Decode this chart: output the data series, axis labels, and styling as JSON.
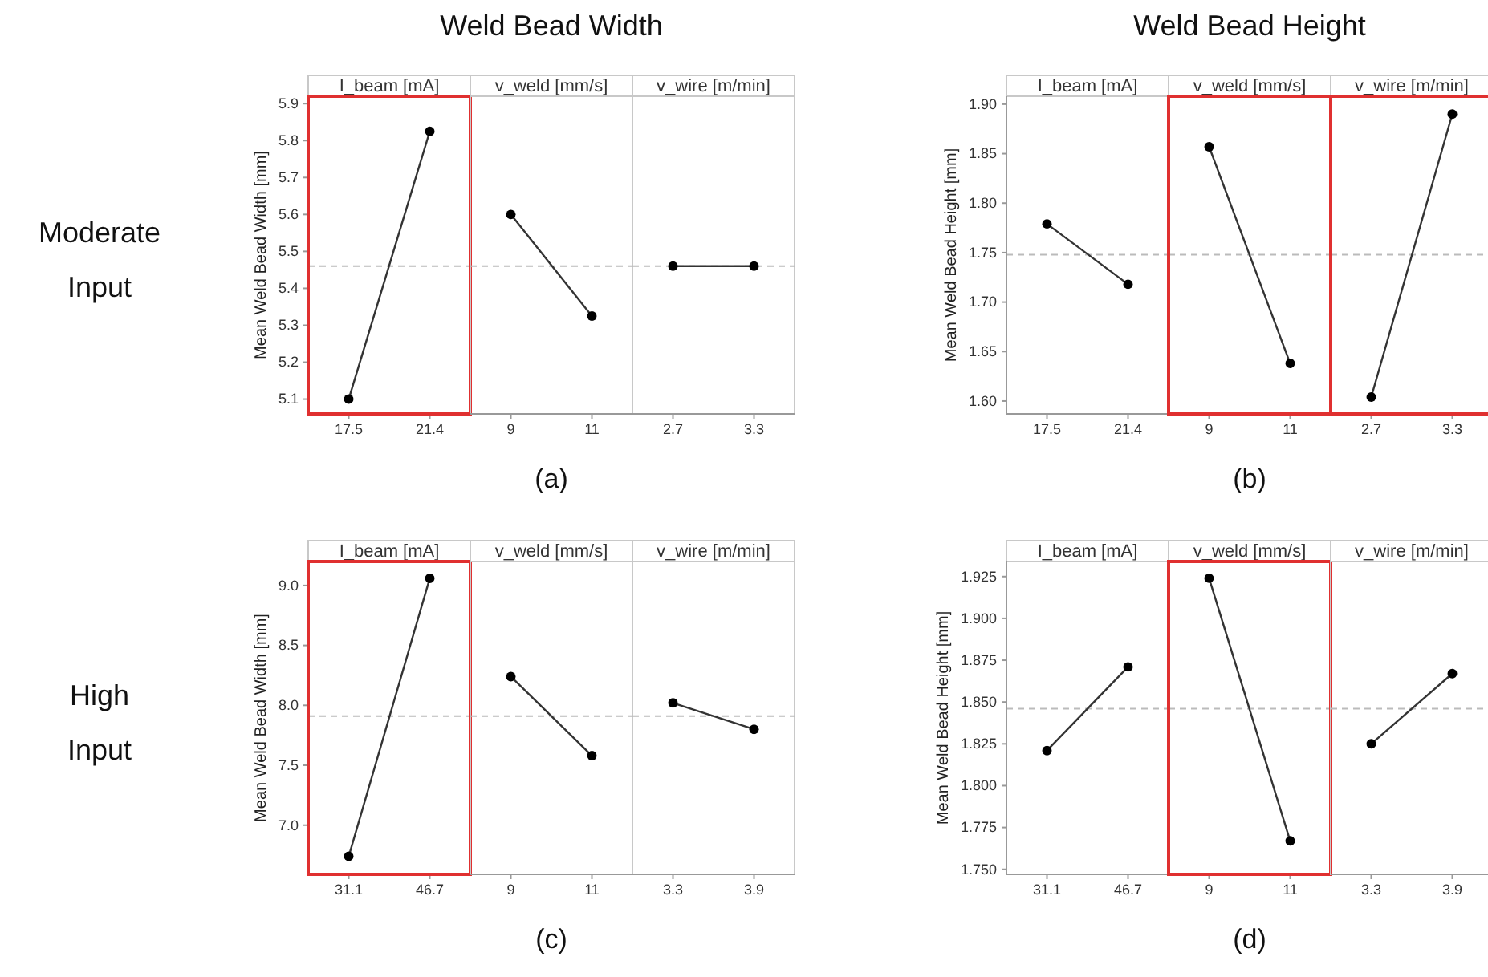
{
  "chart_data": [
    {
      "type": "line",
      "title": "I_beam [mA]",
      "ylabel": "Mean Weld Bead Width [mm]",
      "annotations": [
        "Moderate Input"
      ],
      "categories": [
        "17.5",
        "21.4"
      ],
      "series": [
        {
          "color": "#333333",
          "values": [
            5.1,
            5.825
          ]
        }
      ],
      "ylim": [
        5.06,
        5.92
      ],
      "yticks": [
        5.1,
        5.2,
        5.3,
        5.4,
        5.5,
        5.6,
        5.7,
        5.8,
        5.9
      ],
      "ref_lines": [
        {
          "axis": "y",
          "value": 5.46,
          "color": "#bbbbbb",
          "line_style": "dashed"
        }
      ],
      "marker": "circle"
    },
    {
      "type": "line",
      "title": "v_weld [mm/s]",
      "xlabel": "(a)",
      "annotations": [
        "Weld Bead Width"
      ],
      "categories": [
        "9",
        "11"
      ],
      "series": [
        {
          "color": "#333333",
          "values": [
            5.6,
            5.325
          ]
        }
      ],
      "ylim": [
        5.06,
        5.92
      ],
      "tick_labels": "x",
      "ref_lines": [
        {
          "axis": "y",
          "value": 5.46,
          "color": "#bbbbbb",
          "line_style": "dashed"
        }
      ],
      "marker": "circle"
    },
    {
      "type": "line",
      "title": "v_wire [m/min]",
      "categories": [
        "2.7",
        "3.3"
      ],
      "series": [
        {
          "color": "#333333",
          "values": [
            5.46,
            5.46
          ]
        }
      ],
      "ylim": [
        5.06,
        5.92
      ],
      "tick_labels": "x",
      "ref_lines": [
        {
          "axis": "y",
          "value": 5.46,
          "color": "#bbbbbb",
          "line_style": "dashed"
        }
      ],
      "marker": "circle"
    },
    {
      "type": "line",
      "title": "I_beam [mA]",
      "ylabel": "Mean Weld Bead Height [mm]",
      "categories": [
        "17.5",
        "21.4"
      ],
      "series": [
        {
          "color": "#333333",
          "values": [
            1.779,
            1.718
          ]
        }
      ],
      "ylim": [
        1.587,
        1.908
      ],
      "yticks": [
        {
          "value": 1.6,
          "label": "1.60"
        },
        {
          "value": 1.65,
          "label": "1.65"
        },
        {
          "value": 1.7,
          "label": "1.70"
        },
        {
          "value": 1.75,
          "label": "1.75"
        },
        {
          "value": 1.8,
          "label": "1.80"
        },
        {
          "value": 1.85,
          "label": "1.85"
        },
        {
          "value": 1.9,
          "label": "1.90"
        }
      ],
      "ref_lines": [
        {
          "axis": "y",
          "value": 1.748,
          "color": "#bbbbbb",
          "line_style": "dashed"
        }
      ],
      "marker": "circle"
    },
    {
      "type": "line",
      "title": "v_weld [mm/s]",
      "xlabel": "(b)",
      "annotations": [
        "Weld Bead Height"
      ],
      "categories": [
        "9",
        "11"
      ],
      "series": [
        {
          "color": "#333333",
          "values": [
            1.857,
            1.638
          ]
        }
      ],
      "ylim": [
        1.587,
        1.908
      ],
      "tick_labels": "x",
      "ref_lines": [
        {
          "axis": "y",
          "value": 1.748,
          "color": "#bbbbbb",
          "line_style": "dashed"
        }
      ],
      "marker": "circle"
    },
    {
      "type": "line",
      "title": "v_wire [m/min]",
      "categories": [
        "2.7",
        "3.3"
      ],
      "series": [
        {
          "color": "#333333",
          "values": [
            1.604,
            1.89
          ]
        }
      ],
      "ylim": [
        1.587,
        1.908
      ],
      "tick_labels": "x",
      "ref_lines": [
        {
          "axis": "y",
          "value": 1.748,
          "color": "#bbbbbb",
          "line_style": "dashed"
        }
      ],
      "marker": "circle"
    },
    {
      "type": "line",
      "title": "I_beam [mA]",
      "ylabel": "Mean Weld Bead Width [mm]",
      "annotations": [
        "High Input"
      ],
      "categories": [
        "31.1",
        "46.7"
      ],
      "series": [
        {
          "color": "#333333",
          "values": [
            6.74,
            9.06
          ]
        }
      ],
      "ylim": [
        6.59,
        9.2
      ],
      "yticks": [
        {
          "value": 7,
          "label": "7.0"
        },
        {
          "value": 7.5,
          "label": "7.5"
        },
        {
          "value": 8,
          "label": "8.0"
        },
        {
          "value": 8.5,
          "label": "8.5"
        },
        {
          "value": 9,
          "label": "9.0"
        }
      ],
      "ref_lines": [
        {
          "axis": "y",
          "value": 7.91,
          "color": "#bbbbbb",
          "line_style": "dashed"
        }
      ],
      "marker": "circle"
    },
    {
      "type": "line",
      "title": "v_weld [mm/s]",
      "xlabel": "(c)",
      "categories": [
        "9",
        "11"
      ],
      "series": [
        {
          "color": "#333333",
          "values": [
            8.24,
            7.58
          ]
        }
      ],
      "ylim": [
        6.59,
        9.2
      ],
      "tick_labels": "x",
      "ref_lines": [
        {
          "axis": "y",
          "value": 7.91,
          "color": "#bbbbbb",
          "line_style": "dashed"
        }
      ],
      "marker": "circle"
    },
    {
      "type": "line",
      "title": "v_wire [m/min]",
      "categories": [
        "3.3",
        "3.9"
      ],
      "series": [
        {
          "color": "#333333",
          "values": [
            8.02,
            7.8
          ]
        }
      ],
      "ylim": [
        6.59,
        9.2
      ],
      "tick_labels": "x",
      "ref_lines": [
        {
          "axis": "y",
          "value": 7.91,
          "color": "#bbbbbb",
          "line_style": "dashed"
        }
      ],
      "marker": "circle"
    },
    {
      "type": "line",
      "title": "I_beam [mA]",
      "ylabel": "Mean Weld Bead Height [mm]",
      "categories": [
        "31.1",
        "46.7"
      ],
      "series": [
        {
          "color": "#333333",
          "values": [
            1.821,
            1.871
          ]
        }
      ],
      "ylim": [
        1.747,
        1.934
      ],
      "yticks": [
        {
          "value": 1.75,
          "label": "1.750"
        },
        {
          "value": 1.775,
          "label": "1.775"
        },
        {
          "value": 1.8,
          "label": "1.800"
        },
        {
          "value": 1.825,
          "label": "1.825"
        },
        {
          "value": 1.85,
          "label": "1.850"
        },
        {
          "value": 1.875,
          "label": "1.875"
        },
        {
          "value": 1.9,
          "label": "1.900"
        },
        {
          "value": 1.925,
          "label": "1.925"
        }
      ],
      "ref_lines": [
        {
          "axis": "y",
          "value": 1.846,
          "color": "#bbbbbb",
          "line_style": "dashed"
        }
      ],
      "marker": "circle"
    },
    {
      "type": "line",
      "title": "v_weld [mm/s]",
      "xlabel": "(d)",
      "categories": [
        "9",
        "11"
      ],
      "series": [
        {
          "color": "#333333",
          "values": [
            1.924,
            1.767
          ]
        }
      ],
      "ylim": [
        1.747,
        1.934
      ],
      "tick_labels": "x",
      "ref_lines": [
        {
          "axis": "y",
          "value": 1.846,
          "color": "#bbbbbb",
          "line_style": "dashed"
        }
      ],
      "marker": "circle"
    },
    {
      "type": "line",
      "title": "v_wire [m/min]",
      "categories": [
        "3.3",
        "3.9"
      ],
      "series": [
        {
          "color": "#333333",
          "values": [
            1.825,
            1.867
          ]
        }
      ],
      "ylim": [
        1.747,
        1.934
      ],
      "tick_labels": "x",
      "ref_lines": [
        {
          "axis": "y",
          "value": 1.846,
          "color": "#bbbbbb",
          "line_style": "dashed"
        }
      ],
      "marker": "circle"
    }
  ]
}
